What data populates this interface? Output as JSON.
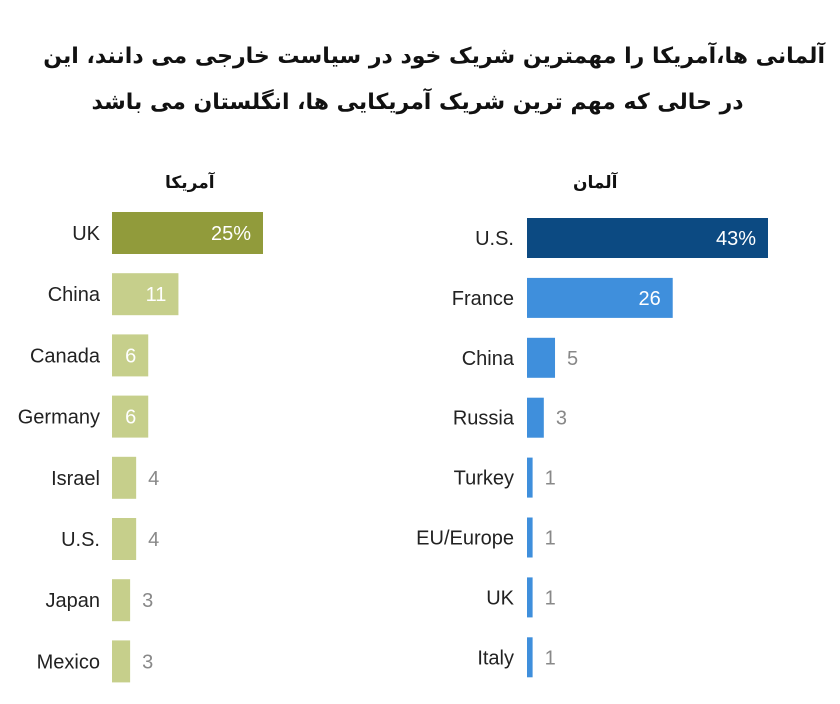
{
  "title_lines": [
    "آلمانی ها،آمریکا را مهمترین شریک خود در سیاست خارجی می دانند، این",
    "در حالی که مهم ترین شریک آمریکایی ها، انگلستان می باشد"
  ],
  "chart_data": [
    {
      "type": "bar",
      "orientation": "horizontal",
      "title": "آمریکا",
      "categories": [
        "UK",
        "China",
        "Canada",
        "Germany",
        "Israel",
        "U.S.",
        "Japan",
        "Mexico"
      ],
      "values": [
        25,
        11,
        6,
        6,
        4,
        4,
        3,
        3
      ],
      "value_labels": [
        "25%",
        "11",
        "6",
        "6",
        "4",
        "4",
        "3",
        "3"
      ],
      "unit": "%",
      "colors": {
        "highlight": "#919b3b",
        "default": "#c6cf8b"
      }
    },
    {
      "type": "bar",
      "orientation": "horizontal",
      "title": "آلمان",
      "categories": [
        "U.S.",
        "France",
        "China",
        "Russia",
        "Turkey",
        "EU/Europe",
        "UK",
        "Italy"
      ],
      "values": [
        43,
        26,
        5,
        3,
        1,
        1,
        1,
        1
      ],
      "value_labels": [
        "43%",
        "26",
        "5",
        "3",
        "1",
        "1",
        "1",
        "1"
      ],
      "unit": "%",
      "colors": {
        "highlight": "#0c4a82",
        "default": "#3f8fdc"
      }
    }
  ]
}
